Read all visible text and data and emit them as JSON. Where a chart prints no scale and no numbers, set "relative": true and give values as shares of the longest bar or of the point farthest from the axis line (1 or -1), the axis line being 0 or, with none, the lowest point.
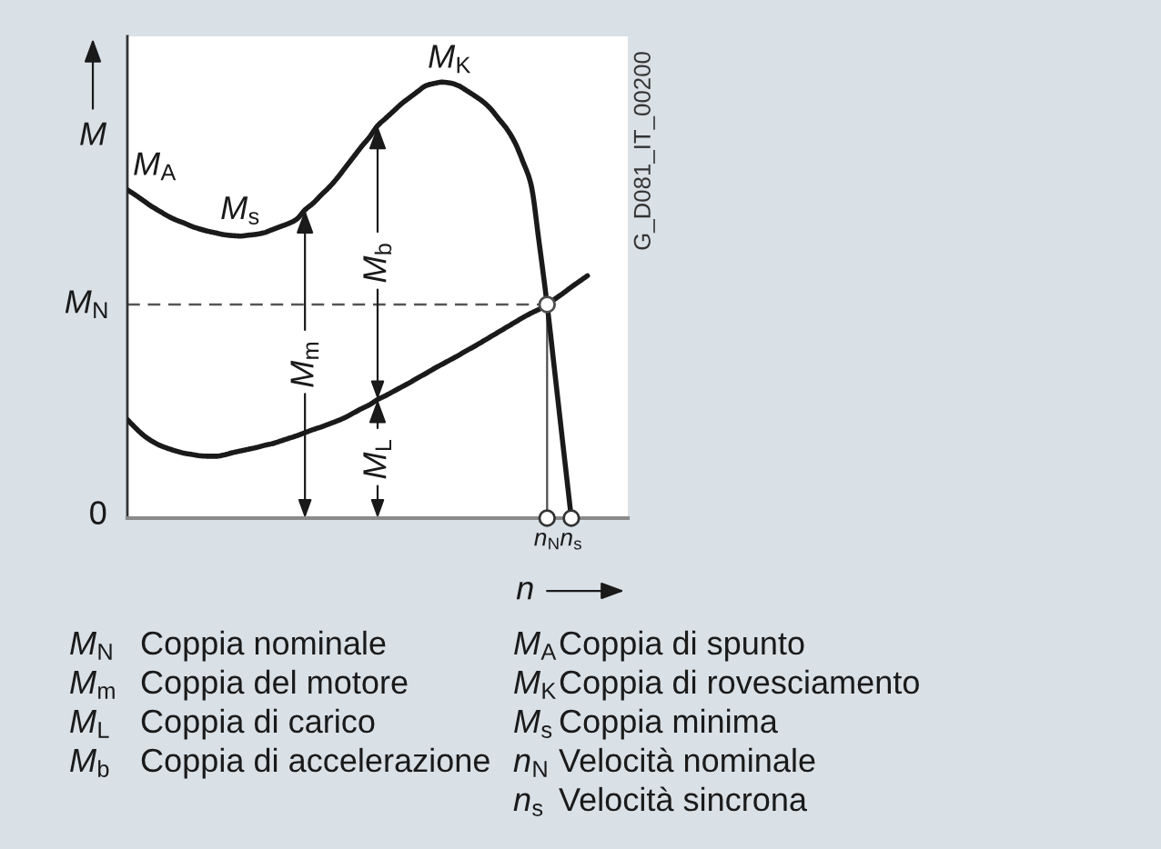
{
  "chart_data": {
    "type": "line",
    "relative": true,
    "ylabel": "M",
    "xlabel": "n",
    "categories": [
      null,
      null,
      null,
      null,
      null,
      null,
      null,
      null,
      null,
      null,
      null,
      null,
      null,
      null,
      null,
      null,
      null,
      null,
      null,
      null,
      null,
      null,
      null,
      null,
      null,
      null,
      null,
      null,
      null,
      null,
      null,
      null,
      null,
      null,
      null,
      null,
      null,
      null,
      null,
      null,
      null,
      null,
      null,
      null,
      null,
      null,
      null,
      null,
      null,
      null,
      null,
      null,
      "n$_{N}$",
      null,
      null,
      "n$_{s}$",
      null,
      null,
      null,
      null,
      null,
      null,
      null
    ],
    "series": [
      {
        "color": "#1a1a1a",
        "values": [
          0.753,
          0.741,
          0.728,
          0.715,
          0.704,
          0.693,
          0.684,
          0.677,
          0.669,
          0.663,
          0.658,
          0.654,
          0.65,
          0.648,
          0.647,
          0.649,
          0.651,
          0.655,
          0.662,
          0.669,
          0.676,
          0.686,
          0.707,
          0.722,
          0.741,
          0.759,
          0.78,
          0.804,
          0.828,
          0.852,
          0.874,
          0.9,
          0.917,
          0.934,
          0.951,
          0.965,
          0.979,
          0.992,
          0.997,
          1,
          0.998,
          0.992,
          0.981,
          0.969,
          0.956,
          0.939,
          0.916,
          0.893,
          0.862,
          0.818,
          0.766,
          0.634,
          0.49,
          0.327,
          0.163,
          0,
          null,
          null,
          null,
          null,
          null,
          null,
          null
        ]
      },
      {
        "color": "#1a1a1a",
        "values": [
          0.226,
          0.207,
          0.19,
          0.177,
          0.167,
          0.16,
          0.154,
          0.149,
          0.146,
          0.143,
          0.142,
          0.142,
          0.145,
          0.15,
          0.154,
          0.158,
          0.162,
          0.167,
          0.171,
          0.177,
          0.183,
          0.189,
          0.196,
          0.203,
          0.209,
          0.216,
          0.223,
          0.231,
          0.241,
          0.251,
          0.26,
          0.272,
          0.281,
          0.291,
          0.301,
          0.311,
          0.322,
          0.332,
          0.343,
          0.353,
          0.363,
          0.373,
          0.384,
          0.394,
          0.405,
          0.416,
          0.427,
          0.438,
          0.449,
          0.46,
          0.47,
          0.479,
          0.49,
          0.503,
          0.516,
          0.53,
          0.543,
          0.556,
          null,
          null,
          null,
          null,
          null
        ]
      },
      {
        "type": "lollipop",
        "color": "#4d4d4d",
        "marker": "circle",
        "values": [
          null,
          null,
          null,
          null,
          null,
          null,
          null,
          null,
          null,
          null,
          null,
          null,
          null,
          null,
          null,
          null,
          null,
          null,
          null,
          null,
          null,
          null,
          null,
          null,
          null,
          null,
          null,
          null,
          null,
          null,
          null,
          null,
          null,
          null,
          null,
          null,
          null,
          null,
          null,
          null,
          null,
          null,
          null,
          null,
          null,
          null,
          null,
          null,
          null,
          null,
          null,
          null,
          0.49,
          null,
          null,
          null,
          null,
          null,
          null,
          null,
          null,
          null,
          null
        ]
      },
      {
        "type": "scatter",
        "color": "#333333",
        "marker": "circle",
        "values": [
          null,
          null,
          null,
          null,
          null,
          null,
          null,
          null,
          null,
          null,
          null,
          null,
          null,
          null,
          null,
          null,
          null,
          null,
          null,
          null,
          null,
          null,
          null,
          null,
          null,
          null,
          null,
          null,
          null,
          null,
          null,
          null,
          null,
          null,
          null,
          null,
          null,
          null,
          null,
          null,
          null,
          null,
          null,
          null,
          null,
          null,
          null,
          null,
          null,
          null,
          null,
          null,
          0,
          null,
          null,
          0,
          null,
          null,
          null,
          null,
          null,
          null,
          null
        ]
      }
    ],
    "ref_lines": [
      {
        "axis": "y",
        "value": 0.49,
        "label": "M$_{N}$",
        "color": "#555555",
        "line_style": "dashed"
      }
    ],
    "annotations": [
      {
        "text": "M$_{s}$",
        "y": 0.647
      },
      {
        "text": "M$_{K}$",
        "y": 1
      },
      {
        "text": "M$_{m}$",
        "y": 0.707
      },
      {
        "text": "M$_{b}$",
        "y": 0.9
      },
      {
        "text": "M$_{L}$",
        "y": 0.272
      },
      "M$_{A}$",
      "0",
      "G_D081_IT_00200",
      "M$_{N}$",
      "Coppia nominale",
      "M$_{m}$",
      "Coppia del motore",
      "M$_{L}$",
      "Coppia di carico",
      "M$_{b}$",
      "Coppia di accelerazione",
      "M$_{A}$",
      "Coppia di spunto",
      "M$_{K}$",
      "Coppia di rovesciamento",
      "M$_{s}$",
      "Coppia minima",
      "n$_{N}$",
      "Velocità nominale",
      "n$_{s}$",
      "Velocità sincrona"
    ]
  }
}
